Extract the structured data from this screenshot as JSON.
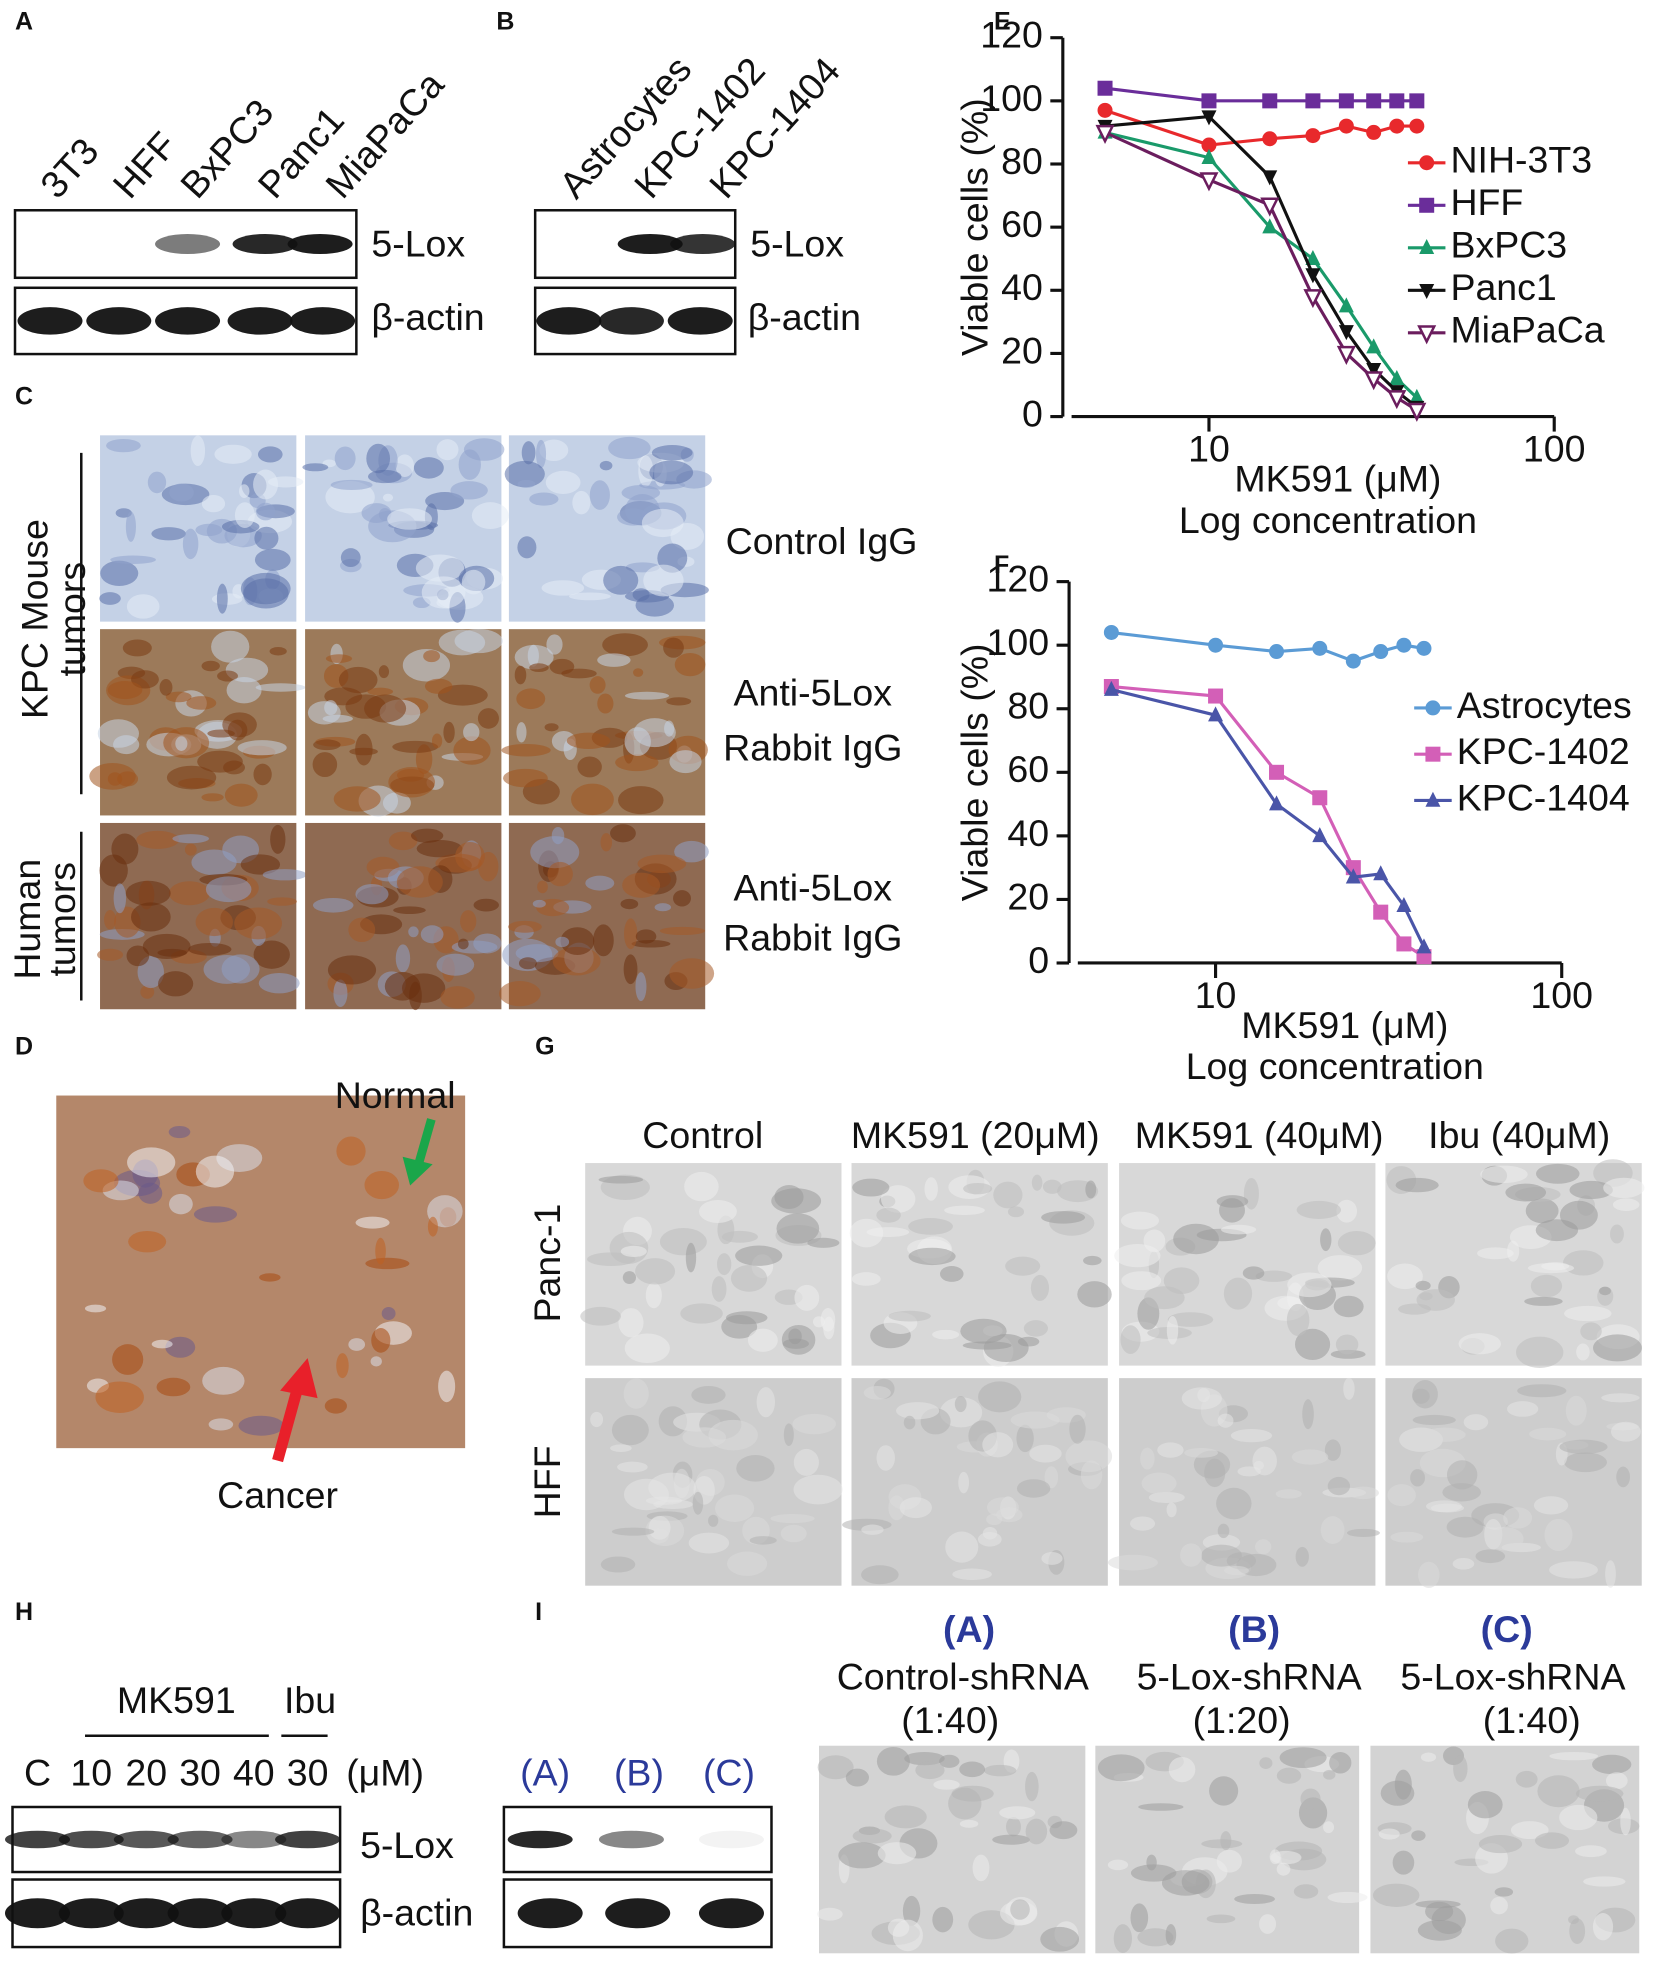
{
  "chart_data": [
    {
      "type": "line",
      "panel": "E",
      "ylabel": "Viable cells (%)",
      "xlabel": [
        "MK591 (μM)",
        "Log concentration"
      ],
      "x": [
        5,
        10,
        15,
        20,
        25,
        30,
        35,
        40
      ],
      "xscale": "log",
      "xlim": [
        4,
        100
      ],
      "xticks": [
        10,
        100
      ],
      "ylim": [
        0,
        120
      ],
      "yticks": [
        0,
        20,
        40,
        60,
        80,
        100,
        120
      ],
      "legend": "right",
      "series": [
        {
          "name": "NIH-3T3",
          "color": "#e8292c",
          "marker": "circle",
          "values": [
            97,
            86,
            88,
            89,
            92,
            90,
            92,
            92
          ]
        },
        {
          "name": "HFF",
          "color": "#6a2d9a",
          "marker": "square",
          "values": [
            104,
            100,
            100,
            100,
            100,
            100,
            100,
            100
          ]
        },
        {
          "name": "BxPC3",
          "color": "#1a9a6a",
          "marker": "triangle-up",
          "values": [
            90,
            82,
            60,
            50,
            35,
            22,
            12,
            6
          ]
        },
        {
          "name": "Panc1",
          "color": "#111111",
          "marker": "triangle-down",
          "values": [
            92,
            95,
            76,
            45,
            27,
            15,
            8,
            3
          ]
        },
        {
          "name": "MiaPaCa",
          "color": "#6b1d5e",
          "marker": "triangle-open",
          "values": [
            90,
            75,
            67,
            38,
            20,
            12,
            6,
            2
          ]
        }
      ]
    },
    {
      "type": "line",
      "panel": "F",
      "ylabel": "Viable cells (%)",
      "xlabel": [
        "MK591 (μM)",
        "Log concentration"
      ],
      "x": [
        5,
        10,
        15,
        20,
        25,
        30,
        35,
        40
      ],
      "xscale": "log",
      "xlim": [
        4,
        100
      ],
      "xticks": [
        10,
        100
      ],
      "ylim": [
        0,
        120
      ],
      "yticks": [
        0,
        20,
        40,
        60,
        80,
        100,
        120
      ],
      "legend": "right",
      "series": [
        {
          "name": "Astrocytes",
          "color": "#5b9bd5",
          "marker": "circle",
          "values": [
            104,
            100,
            98,
            99,
            95,
            98,
            100,
            99
          ]
        },
        {
          "name": "KPC-1402",
          "color": "#d35fb7",
          "marker": "square",
          "values": [
            87,
            84,
            60,
            52,
            30,
            16,
            6,
            2
          ]
        },
        {
          "name": "KPC-1404",
          "color": "#4a55a8",
          "marker": "triangle-up",
          "values": [
            86,
            78,
            50,
            40,
            27,
            28,
            18,
            5
          ]
        }
      ]
    }
  ],
  "panels": {
    "A": {
      "label": "A",
      "lanes": [
        "3T3",
        "HFF",
        "BxPC3",
        "Panc1",
        "MiaPaCa"
      ],
      "bands": [
        "5-Lox",
        "β-actin"
      ]
    },
    "B": {
      "label": "B",
      "lanes": [
        "Astrocytes",
        "KPC-1402",
        "KPC-1404"
      ],
      "bands": [
        "5-Lox",
        "β-actin"
      ]
    },
    "C": {
      "label": "C",
      "rows": [
        [
          "KPC Mouse",
          "tumors"
        ],
        [
          "Human",
          "tumors"
        ]
      ],
      "stains": [
        [
          "Control IgG"
        ],
        [
          "Anti-5Lox",
          "Rabbit IgG"
        ],
        [
          "Anti-5Lox",
          "Rabbit IgG"
        ]
      ]
    },
    "D": {
      "label": "D",
      "arrows": [
        "Normal",
        "Cancer"
      ]
    },
    "G": {
      "label": "G",
      "columns": [
        "Control",
        "MK591 (20μM)",
        "MK591 (40μM)",
        "Ibu (40μM)"
      ],
      "rows": [
        "Panc-1",
        "HFF"
      ]
    },
    "H": {
      "label": "H",
      "groups": [
        "MK591",
        "Ibu"
      ],
      "lanes": [
        "C",
        "10",
        "20",
        "30",
        "40",
        "30"
      ],
      "unit": "(μM)",
      "bands": [
        "5-Lox",
        "β-actin"
      ]
    },
    "I": {
      "label": "I",
      "lanes": [
        "(A)",
        "(B)",
        "(C)"
      ],
      "columns": [
        [
          "(A)",
          "Control-shRNA",
          "(1:40)"
        ],
        [
          "(B)",
          "5-Lox-shRNA",
          "(1:20)"
        ],
        [
          "(C)",
          "5-Lox-shRNA",
          "(1:40)"
        ]
      ]
    }
  }
}
